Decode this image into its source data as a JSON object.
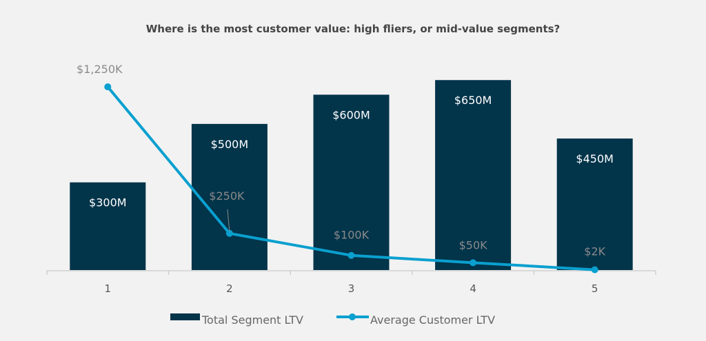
{
  "chart_data": {
    "type": "bar",
    "title": "Where is the most customer value: high fliers, or mid-value segments?",
    "categories": [
      "1",
      "2",
      "3",
      "4",
      "5"
    ],
    "series": [
      {
        "name": "Total Segment LTV",
        "type": "bar",
        "axis": "primary",
        "unit": "$M",
        "values": [
          300,
          500,
          600,
          650,
          450
        ],
        "labels": [
          "$300M",
          "$500M",
          "$600M",
          "$650M",
          "$450M"
        ],
        "color": "#02344a"
      },
      {
        "name": "Average Customer LTV",
        "type": "line",
        "axis": "secondary",
        "unit": "$K",
        "values": [
          1250,
          250,
          100,
          50,
          2
        ],
        "labels": [
          "$1,250K",
          "$250K",
          "$100K",
          "$50K",
          "$2K"
        ],
        "color": "#0aa0cf"
      }
    ],
    "ylim": [
      0,
      660
    ],
    "y2lim": [
      0,
      1316
    ],
    "grid": false,
    "legend": "bottom",
    "xlabel": "",
    "ylabel": ""
  }
}
